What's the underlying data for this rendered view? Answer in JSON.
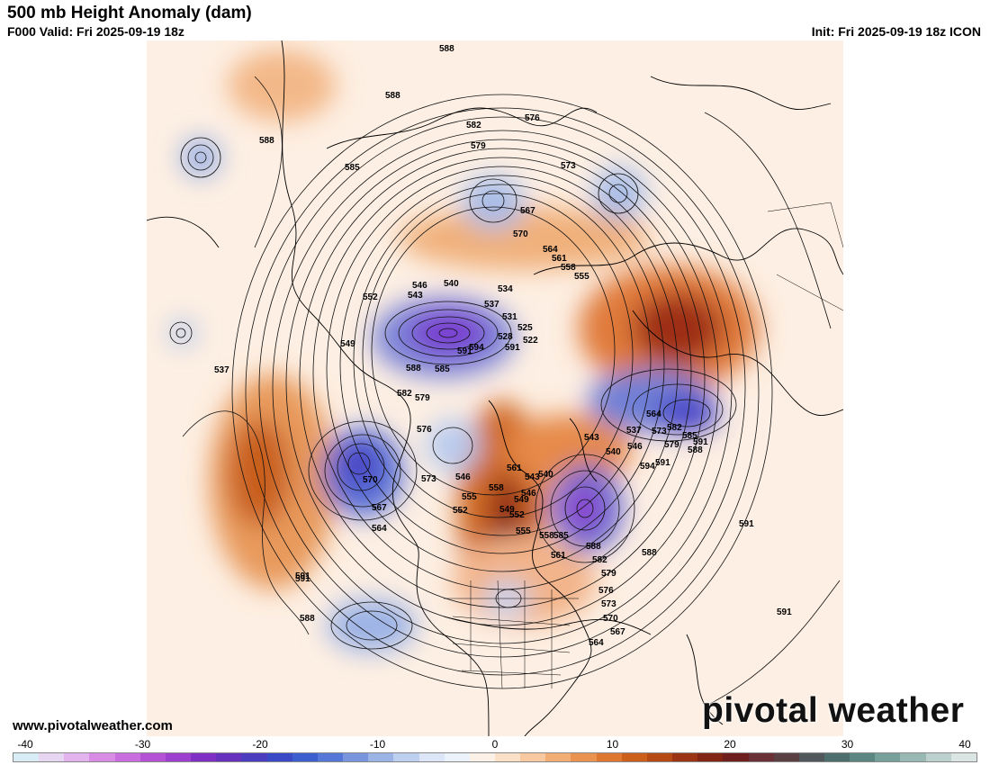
{
  "header": {
    "title": "500 mb Height Anomaly (dam)",
    "valid": "F000 Valid: Fri 2025-09-19 18z",
    "init": "Init: Fri 2025-09-19 18z ICON"
  },
  "footer": {
    "website": "www.pivotalweather.com",
    "brand": "pivotal weather"
  },
  "colorbar": {
    "tick_labels": [
      "-40",
      "-30",
      "-20",
      "-10",
      "0",
      "10",
      "20",
      "30",
      "40"
    ],
    "colors": [
      "#d8ecf6",
      "#e6d6f2",
      "#e3b3ee",
      "#d98ce6",
      "#c96ede",
      "#b452d6",
      "#9d3fcf",
      "#7f2fc4",
      "#6531bd",
      "#4b3cc0",
      "#3a4ac6",
      "#3c5fcf",
      "#5577d8",
      "#7895de",
      "#9cb3e6",
      "#bdd0ef",
      "#dce6f6",
      "#ecf2fa",
      "#fbf1e6",
      "#fbe0c8",
      "#f8c9a0",
      "#f2ad75",
      "#ea9250",
      "#de7732",
      "#cc5f1c",
      "#b64a15",
      "#9c3513",
      "#832513",
      "#6f1f1d",
      "#6b3035",
      "#5b4043",
      "#51585c",
      "#4d6e6c",
      "#5c8682",
      "#78a09b",
      "#99b8b3",
      "#bcd1cd",
      "#dbe5e3"
    ]
  },
  "map": {
    "contour_labels": [
      "588",
      "588",
      "588",
      "585",
      "582",
      "579",
      "576",
      "573",
      "570",
      "567",
      "564",
      "561",
      "558",
      "555",
      "552",
      "549",
      "546",
      "543",
      "540",
      "537",
      "534",
      "531",
      "528",
      "525",
      "522",
      "591",
      "594",
      "591",
      "588",
      "585",
      "582",
      "579",
      "576",
      "573",
      "570",
      "567",
      "564",
      "561",
      "558",
      "555",
      "552",
      "549",
      "546",
      "543",
      "540",
      "537",
      "546",
      "564",
      "573",
      "579",
      "582",
      "585",
      "588",
      "591",
      "594",
      "591",
      "588",
      "588",
      "585",
      "582",
      "579",
      "576",
      "573",
      "570",
      "567",
      "564",
      "561",
      "558",
      "555",
      "552",
      "549",
      "546",
      "543",
      "540",
      "537",
      "591",
      "591",
      "591",
      "588",
      "591"
    ]
  }
}
